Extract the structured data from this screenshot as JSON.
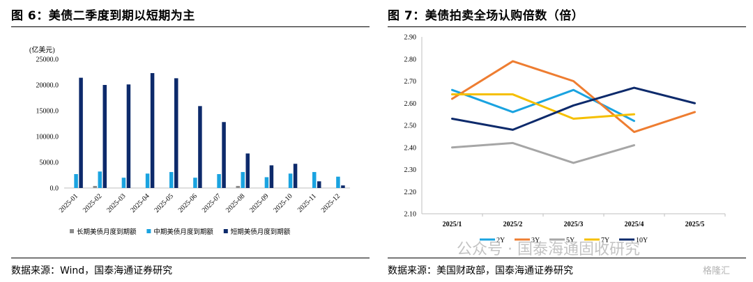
{
  "left": {
    "title": "图 6：美债二季度到期以短期为主",
    "source": "数据来源：Wind，国泰海通证券研究",
    "chart_data": {
      "type": "bar",
      "unit_label": "(亿美元)",
      "categories": [
        "2025-01",
        "2025-02",
        "2025-03",
        "2025-04",
        "2025-05",
        "2025-06",
        "2025-07",
        "2025-08",
        "2025-09",
        "2025-10",
        "2025-11",
        "2025-12"
      ],
      "ylim": [
        0,
        25000
      ],
      "yticks": [
        "0.0",
        "5000.0",
        "10000.0",
        "15000.0",
        "20000.0",
        "25000.0"
      ],
      "ytick_values": [
        0,
        5000,
        10000,
        15000,
        20000,
        25000
      ],
      "series": [
        {
          "name": "长期美债月度到期额",
          "color": "#8c8c8c",
          "values": [
            0,
            400,
            0,
            0,
            0,
            0,
            0,
            400,
            0,
            0,
            0,
            0
          ]
        },
        {
          "name": "中期美债月度到期额",
          "color": "#1aa3e0",
          "values": [
            2700,
            3200,
            2000,
            2800,
            3100,
            2000,
            2700,
            3100,
            2100,
            2800,
            3100,
            2200
          ]
        },
        {
          "name": "短期美债月度到期额",
          "color": "#0d2a6b",
          "values": [
            21400,
            20000,
            20100,
            22300,
            21300,
            15900,
            12800,
            6700,
            4400,
            4700,
            1300,
            500
          ]
        }
      ]
    }
  },
  "right": {
    "title": "图 7：美债拍卖全场认购倍数（倍）",
    "source": "数据来源：美国财政部，国泰海通证券研究",
    "chart_data": {
      "type": "line",
      "x": [
        "2025/1",
        "2025/2",
        "2025/3",
        "2025/4",
        "2025/5"
      ],
      "ylim": [
        2.1,
        2.9
      ],
      "yticks": [
        "2.10",
        "2.20",
        "2.30",
        "2.40",
        "2.50",
        "2.60",
        "2.70",
        "2.80",
        "2.90"
      ],
      "ytick_values": [
        2.1,
        2.2,
        2.3,
        2.4,
        2.5,
        2.6,
        2.7,
        2.8,
        2.9
      ],
      "legend_position": "bottom-center",
      "series": [
        {
          "name": "2Y",
          "color": "#1aa3e0",
          "values": [
            2.66,
            2.56,
            2.66,
            2.52,
            null
          ]
        },
        {
          "name": "3Y",
          "color": "#ee7d31",
          "values": [
            2.62,
            2.79,
            2.7,
            2.47,
            2.56
          ]
        },
        {
          "name": "5Y",
          "color": "#a6a6a6",
          "values": [
            2.4,
            2.42,
            2.33,
            2.41,
            null
          ]
        },
        {
          "name": "7Y",
          "color": "#f5bf00",
          "values": [
            2.64,
            2.64,
            2.53,
            2.55,
            null
          ]
        },
        {
          "name": "10Y",
          "color": "#0d2a6b",
          "values": [
            2.53,
            2.48,
            2.59,
            2.67,
            2.6
          ]
        }
      ]
    }
  },
  "watermark": {
    "text": "公众号 · 国泰海通固收研究",
    "logo_text": "格隆汇"
  }
}
